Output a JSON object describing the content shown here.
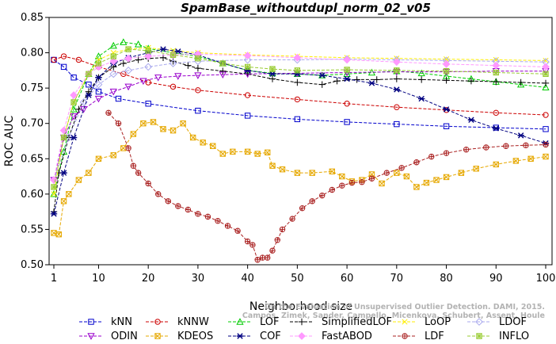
{
  "chart_data": {
    "type": "line",
    "title": "SpamBase_withoutdupl_norm_02_v05",
    "xlabel": "Neighborhood size",
    "ylabel": "ROC AUC",
    "xlim": [
      1,
      100
    ],
    "ylim": [
      0.5,
      0.85
    ],
    "x_ticks": [
      "1",
      "10",
      "20",
      "30",
      "40",
      "50",
      "60",
      "70",
      "80",
      "90",
      "100"
    ],
    "y_ticks": [
      "0.50",
      "0.55",
      "0.60",
      "0.65",
      "0.70",
      "0.75",
      "0.80",
      "0.85"
    ],
    "grid": false,
    "legend_position": "bottom",
    "credit": "Campos, Zimek, Sander, Campello, Micenkova, Schubert, Assent, Houle",
    "credit_back": "On the Evaluation of Unsupervised Outlier Detection. DAMI, 2015.",
    "series": [
      {
        "name": "kNN",
        "color": "#0000cc",
        "marker": "square",
        "points": [
          [
            1,
            0.79
          ],
          [
            3,
            0.78
          ],
          [
            5,
            0.765
          ],
          [
            8,
            0.755
          ],
          [
            10,
            0.745
          ],
          [
            14,
            0.735
          ],
          [
            20,
            0.728
          ],
          [
            30,
            0.718
          ],
          [
            40,
            0.711
          ],
          [
            50,
            0.706
          ],
          [
            60,
            0.702
          ],
          [
            70,
            0.699
          ],
          [
            80,
            0.696
          ],
          [
            90,
            0.694
          ],
          [
            100,
            0.692
          ]
        ]
      },
      {
        "name": "kNNW",
        "color": "#cc0000",
        "marker": "circle",
        "points": [
          [
            1,
            0.79
          ],
          [
            3,
            0.795
          ],
          [
            6,
            0.79
          ],
          [
            10,
            0.78
          ],
          [
            15,
            0.77
          ],
          [
            20,
            0.758
          ],
          [
            25,
            0.752
          ],
          [
            30,
            0.747
          ],
          [
            40,
            0.74
          ],
          [
            50,
            0.734
          ],
          [
            60,
            0.728
          ],
          [
            70,
            0.723
          ],
          [
            80,
            0.719
          ],
          [
            90,
            0.715
          ],
          [
            100,
            0.712
          ]
        ]
      },
      {
        "name": "LOF",
        "color": "#00cc00",
        "marker": "triangle",
        "points": [
          [
            1,
            0.6
          ],
          [
            3,
            0.66
          ],
          [
            5,
            0.72
          ],
          [
            8,
            0.77
          ],
          [
            10,
            0.795
          ],
          [
            13,
            0.81
          ],
          [
            15,
            0.815
          ],
          [
            18,
            0.812
          ],
          [
            20,
            0.806
          ],
          [
            25,
            0.8
          ],
          [
            30,
            0.795
          ],
          [
            35,
            0.785
          ],
          [
            40,
            0.775
          ],
          [
            45,
            0.771
          ],
          [
            50,
            0.77
          ],
          [
            55,
            0.768
          ],
          [
            60,
            0.77
          ],
          [
            65,
            0.772
          ],
          [
            70,
            0.774
          ],
          [
            75,
            0.771
          ],
          [
            80,
            0.767
          ],
          [
            85,
            0.763
          ],
          [
            90,
            0.759
          ],
          [
            95,
            0.755
          ],
          [
            100,
            0.751
          ]
        ]
      },
      {
        "name": "SimplifiedLOF",
        "color": "#000000",
        "marker": "plus",
        "points": [
          [
            1,
            0.575
          ],
          [
            2,
            0.63
          ],
          [
            4,
            0.68
          ],
          [
            6,
            0.72
          ],
          [
            8,
            0.745
          ],
          [
            10,
            0.765
          ],
          [
            13,
            0.78
          ],
          [
            15,
            0.785
          ],
          [
            18,
            0.79
          ],
          [
            20,
            0.792
          ],
          [
            23,
            0.793
          ],
          [
            25,
            0.788
          ],
          [
            28,
            0.782
          ],
          [
            30,
            0.778
          ],
          [
            35,
            0.774
          ],
          [
            40,
            0.77
          ],
          [
            45,
            0.763
          ],
          [
            50,
            0.758
          ],
          [
            55,
            0.755
          ],
          [
            58,
            0.76
          ],
          [
            62,
            0.762
          ],
          [
            66,
            0.762
          ],
          [
            70,
            0.763
          ],
          [
            75,
            0.762
          ],
          [
            80,
            0.761
          ],
          [
            85,
            0.76
          ],
          [
            90,
            0.759
          ],
          [
            95,
            0.758
          ],
          [
            100,
            0.757
          ]
        ]
      },
      {
        "name": "LoOP",
        "color": "#ffee00",
        "marker": "x",
        "points": [
          [
            1,
            0.6
          ],
          [
            3,
            0.68
          ],
          [
            5,
            0.73
          ],
          [
            8,
            0.77
          ],
          [
            10,
            0.79
          ],
          [
            13,
            0.8
          ],
          [
            16,
            0.805
          ],
          [
            20,
            0.807
          ],
          [
            25,
            0.803
          ],
          [
            30,
            0.8
          ],
          [
            40,
            0.797
          ],
          [
            50,
            0.795
          ],
          [
            60,
            0.793
          ],
          [
            70,
            0.792
          ],
          [
            80,
            0.791
          ],
          [
            90,
            0.79
          ],
          [
            100,
            0.789
          ]
        ]
      },
      {
        "name": "LDOF",
        "color": "#aaaaee",
        "marker": "diamond",
        "points": [
          [
            1,
            0.62
          ],
          [
            4,
            0.68
          ],
          [
            7,
            0.73
          ],
          [
            10,
            0.755
          ],
          [
            13,
            0.77
          ],
          [
            16,
            0.775
          ],
          [
            20,
            0.78
          ],
          [
            25,
            0.785
          ],
          [
            30,
            0.788
          ],
          [
            40,
            0.79
          ],
          [
            50,
            0.79
          ],
          [
            60,
            0.791
          ],
          [
            70,
            0.79
          ],
          [
            80,
            0.789
          ],
          [
            90,
            0.788
          ],
          [
            100,
            0.787
          ]
        ]
      },
      {
        "name": "ODIN",
        "color": "#9900cc",
        "marker": "triangle-down",
        "points": [
          [
            1,
            0.62
          ],
          [
            3,
            0.68
          ],
          [
            5,
            0.71
          ],
          [
            7,
            0.72
          ],
          [
            10,
            0.735
          ],
          [
            13,
            0.745
          ],
          [
            16,
            0.752
          ],
          [
            19,
            0.76
          ],
          [
            22,
            0.765
          ],
          [
            26,
            0.767
          ],
          [
            30,
            0.768
          ],
          [
            35,
            0.769
          ],
          [
            40,
            0.77
          ],
          [
            50,
            0.771
          ],
          [
            60,
            0.772
          ],
          [
            70,
            0.773
          ],
          [
            80,
            0.773
          ],
          [
            90,
            0.774
          ],
          [
            100,
            0.774
          ]
        ]
      },
      {
        "name": "KDEOS",
        "color": "#e6a800",
        "marker": "square-x",
        "points": [
          [
            1,
            0.545
          ],
          [
            2,
            0.543
          ],
          [
            3,
            0.59
          ],
          [
            4,
            0.6
          ],
          [
            6,
            0.62
          ],
          [
            8,
            0.63
          ],
          [
            10,
            0.65
          ],
          [
            13,
            0.655
          ],
          [
            15,
            0.665
          ],
          [
            17,
            0.685
          ],
          [
            19,
            0.7
          ],
          [
            21,
            0.702
          ],
          [
            23,
            0.692
          ],
          [
            25,
            0.69
          ],
          [
            27,
            0.7
          ],
          [
            29,
            0.68
          ],
          [
            31,
            0.673
          ],
          [
            33,
            0.668
          ],
          [
            35,
            0.657
          ],
          [
            37,
            0.66
          ],
          [
            40,
            0.66
          ],
          [
            42,
            0.657
          ],
          [
            44,
            0.659
          ],
          [
            45,
            0.64
          ],
          [
            47,
            0.635
          ],
          [
            50,
            0.63
          ],
          [
            53,
            0.63
          ],
          [
            57,
            0.632
          ],
          [
            59,
            0.625
          ],
          [
            61,
            0.618
          ],
          [
            63,
            0.62
          ],
          [
            65,
            0.628
          ],
          [
            67,
            0.615
          ],
          [
            70,
            0.63
          ],
          [
            72,
            0.625
          ],
          [
            74,
            0.61
          ],
          [
            76,
            0.616
          ],
          [
            78,
            0.62
          ],
          [
            80,
            0.624
          ],
          [
            83,
            0.63
          ],
          [
            86,
            0.636
          ],
          [
            90,
            0.642
          ],
          [
            94,
            0.647
          ],
          [
            97,
            0.65
          ],
          [
            100,
            0.653
          ]
        ]
      },
      {
        "name": "COF",
        "color": "#000080",
        "marker": "asterisk",
        "points": [
          [
            1,
            0.572
          ],
          [
            3,
            0.63
          ],
          [
            5,
            0.68
          ],
          [
            8,
            0.74
          ],
          [
            10,
            0.765
          ],
          [
            13,
            0.785
          ],
          [
            16,
            0.793
          ],
          [
            20,
            0.8
          ],
          [
            23,
            0.805
          ],
          [
            26,
            0.802
          ],
          [
            30,
            0.797
          ],
          [
            35,
            0.785
          ],
          [
            40,
            0.775
          ],
          [
            45,
            0.77
          ],
          [
            50,
            0.77
          ],
          [
            55,
            0.768
          ],
          [
            60,
            0.763
          ],
          [
            65,
            0.757
          ],
          [
            70,
            0.748
          ],
          [
            75,
            0.735
          ],
          [
            80,
            0.72
          ],
          [
            85,
            0.705
          ],
          [
            90,
            0.693
          ],
          [
            95,
            0.683
          ],
          [
            100,
            0.672
          ]
        ]
      },
      {
        "name": "FastABOD",
        "color": "#ff99ff",
        "marker": "diamond-filled",
        "points": [
          [
            1,
            0.62
          ],
          [
            3,
            0.69
          ],
          [
            5,
            0.74
          ],
          [
            8,
            0.77
          ],
          [
            10,
            0.78
          ],
          [
            13,
            0.788
          ],
          [
            16,
            0.792
          ],
          [
            20,
            0.795
          ],
          [
            25,
            0.797
          ],
          [
            30,
            0.798
          ],
          [
            40,
            0.796
          ],
          [
            50,
            0.793
          ],
          [
            60,
            0.79
          ],
          [
            70,
            0.787
          ],
          [
            80,
            0.784
          ],
          [
            90,
            0.782
          ],
          [
            100,
            0.78
          ]
        ]
      },
      {
        "name": "LDF",
        "color": "#aa2222",
        "marker": "circle-plus",
        "points": [
          [
            12,
            0.715
          ],
          [
            14,
            0.7
          ],
          [
            16,
            0.665
          ],
          [
            17,
            0.64
          ],
          [
            18,
            0.63
          ],
          [
            20,
            0.615
          ],
          [
            22,
            0.6
          ],
          [
            24,
            0.59
          ],
          [
            26,
            0.583
          ],
          [
            28,
            0.578
          ],
          [
            30,
            0.572
          ],
          [
            32,
            0.568
          ],
          [
            34,
            0.562
          ],
          [
            36,
            0.555
          ],
          [
            38,
            0.548
          ],
          [
            40,
            0.533
          ],
          [
            41,
            0.528
          ],
          [
            42,
            0.507
          ],
          [
            43,
            0.51
          ],
          [
            44,
            0.51
          ],
          [
            45,
            0.52
          ],
          [
            46,
            0.535
          ],
          [
            47,
            0.55
          ],
          [
            49,
            0.565
          ],
          [
            51,
            0.58
          ],
          [
            53,
            0.59
          ],
          [
            55,
            0.598
          ],
          [
            57,
            0.606
          ],
          [
            59,
            0.612
          ],
          [
            61,
            0.616
          ],
          [
            63,
            0.617
          ],
          [
            65,
            0.622
          ],
          [
            68,
            0.63
          ],
          [
            71,
            0.637
          ],
          [
            74,
            0.645
          ],
          [
            77,
            0.653
          ],
          [
            80,
            0.658
          ],
          [
            84,
            0.663
          ],
          [
            88,
            0.666
          ],
          [
            92,
            0.668
          ],
          [
            96,
            0.669
          ],
          [
            100,
            0.67
          ]
        ]
      },
      {
        "name": "INFLO",
        "color": "#99cc33",
        "marker": "square-asterisk",
        "points": [
          [
            1,
            0.61
          ],
          [
            3,
            0.68
          ],
          [
            5,
            0.73
          ],
          [
            8,
            0.77
          ],
          [
            10,
            0.785
          ],
          [
            13,
            0.795
          ],
          [
            16,
            0.805
          ],
          [
            20,
            0.803
          ],
          [
            25,
            0.797
          ],
          [
            30,
            0.792
          ],
          [
            35,
            0.785
          ],
          [
            40,
            0.78
          ],
          [
            45,
            0.777
          ],
          [
            50,
            0.775
          ],
          [
            60,
            0.776
          ],
          [
            70,
            0.775
          ],
          [
            80,
            0.774
          ],
          [
            90,
            0.772
          ],
          [
            100,
            0.77
          ]
        ]
      }
    ]
  }
}
